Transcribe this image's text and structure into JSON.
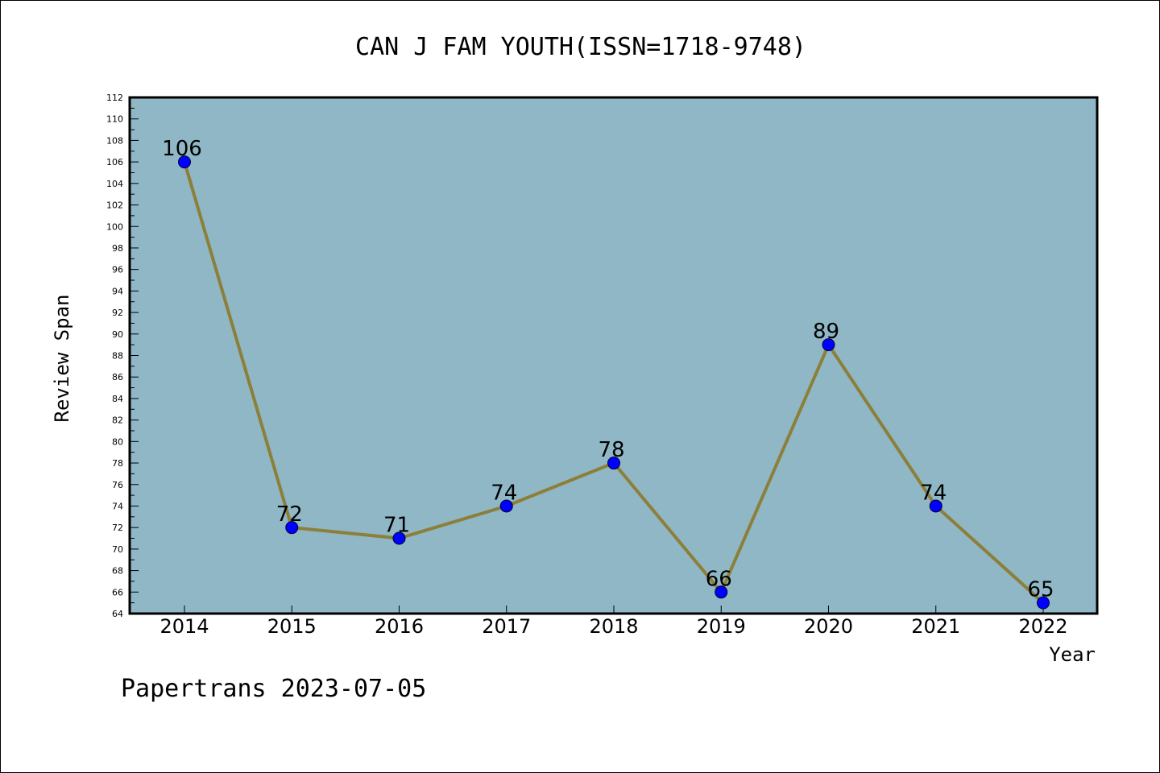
{
  "chart_data": {
    "type": "line",
    "title": "CAN J FAM YOUTH(ISSN=1718-9748)",
    "xlabel": "Year",
    "ylabel": "Review Span",
    "categories": [
      "2014",
      "2015",
      "2016",
      "2017",
      "2018",
      "2019",
      "2020",
      "2021",
      "2022"
    ],
    "series": [
      {
        "values": [
          106,
          72,
          71,
          74,
          78,
          66,
          89,
          74,
          65
        ]
      }
    ],
    "data_labels": [
      "106",
      "72",
      "71",
      "74",
      "78",
      "66",
      "89",
      "74",
      "65"
    ],
    "ylim": [
      64,
      112
    ],
    "ytick_step": 2,
    "grid": false,
    "legend": "none",
    "colors": {
      "plot_background": "#8fb7c5",
      "line": "#8c7f3a",
      "marker": "#0000ff"
    }
  },
  "footer": "Papertrans 2023-07-05"
}
